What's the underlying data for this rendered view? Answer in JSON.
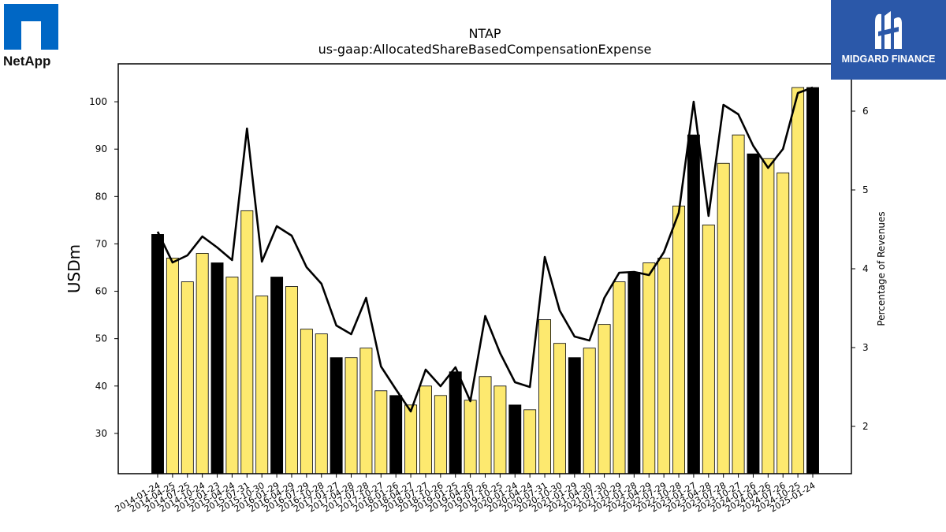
{
  "logos": {
    "company": "NetApp",
    "publisher": "MIDGARD FINANCE"
  },
  "chart_data": {
    "type": "bar",
    "title": "NTAP",
    "subtitle": "us-gaap:AllocatedShareBasedCompensationExpense",
    "ylabel": "USDm",
    "ylabel_right": "Percentage of Revenues",
    "ylim": [
      21.5,
      108
    ],
    "ylim_right": [
      1.4,
      6.6
    ],
    "yticks": [
      30,
      40,
      50,
      60,
      70,
      80,
      90,
      100
    ],
    "yticks_right": [
      2,
      3,
      4,
      5,
      6
    ],
    "colors": {
      "annual_bar": "#000000",
      "quarter_bar": "#fde96f",
      "line": "#000000"
    },
    "categories": [
      "2014-01-24",
      "2014-04-25",
      "2014-07-25",
      "2014-10-24",
      "2015-01-23",
      "2015-04-24",
      "2015-07-31",
      "2015-10-30",
      "2016-01-29",
      "2016-04-29",
      "2016-07-29",
      "2016-10-28",
      "2017-01-27",
      "2017-04-28",
      "2017-07-28",
      "2017-10-27",
      "2018-01-26",
      "2018-04-27",
      "2018-07-27",
      "2018-10-26",
      "2019-01-25",
      "2019-04-26",
      "2019-07-26",
      "2019-10-25",
      "2020-01-24",
      "2020-04-24",
      "2020-07-31",
      "2020-10-30",
      "2021-01-29",
      "2021-04-30",
      "2021-07-30",
      "2021-10-29",
      "2022-01-28",
      "2022-04-29",
      "2022-07-29",
      "2022-10-28",
      "2023-01-27",
      "2023-04-28",
      "2023-07-28",
      "2023-10-27",
      "2024-01-26",
      "2024-04-26",
      "2024-07-26",
      "2024-10-25",
      "2025-01-24"
    ],
    "series": [
      {
        "type": "bar",
        "values": [
          72,
          67,
          62,
          68,
          66,
          63,
          77,
          59,
          63,
          61,
          52,
          51,
          46,
          46,
          48,
          39,
          38,
          36,
          40,
          38,
          43,
          37,
          42,
          40,
          36,
          35,
          54,
          49,
          46,
          48,
          53,
          62,
          64,
          66,
          67,
          78,
          93,
          74,
          87,
          93,
          89,
          88,
          85,
          103,
          103
        ],
        "highlight": [
          true,
          false,
          false,
          false,
          true,
          false,
          false,
          false,
          true,
          false,
          false,
          false,
          true,
          false,
          false,
          false,
          true,
          false,
          false,
          false,
          true,
          false,
          false,
          false,
          true,
          false,
          false,
          false,
          true,
          false,
          false,
          false,
          true,
          false,
          false,
          false,
          true,
          false,
          false,
          false,
          true,
          false,
          false,
          false,
          true
        ]
      },
      {
        "type": "line",
        "axis": "right",
        "values": [
          4.47,
          4.08,
          4.17,
          4.41,
          4.27,
          4.11,
          5.78,
          4.09,
          4.54,
          4.42,
          4.02,
          3.81,
          3.28,
          3.17,
          3.63,
          2.76,
          2.47,
          2.19,
          2.72,
          2.51,
          2.75,
          2.32,
          3.4,
          2.93,
          2.56,
          2.5,
          4.15,
          3.47,
          3.14,
          3.09,
          3.63,
          3.95,
          3.96,
          3.92,
          4.21,
          4.71,
          6.12,
          4.67,
          6.08,
          5.96,
          5.56,
          5.28,
          5.52,
          6.23,
          6.3
        ]
      }
    ]
  }
}
